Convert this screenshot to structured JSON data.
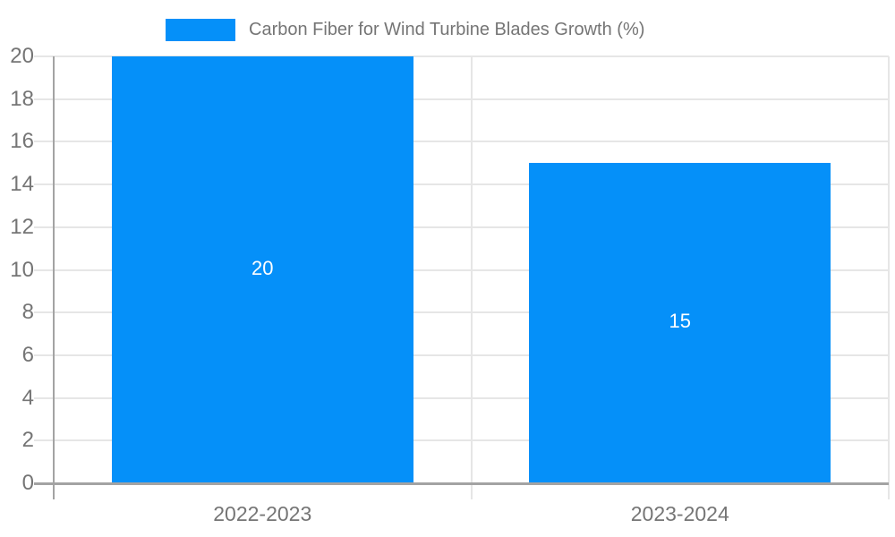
{
  "chart_data": {
    "type": "bar",
    "title": "Carbon Fiber for Wind Turbine Blades Growth (%)",
    "categories": [
      "2022-2023",
      "2023-2024"
    ],
    "values": [
      20,
      15
    ],
    "bar_value_labels": [
      "20",
      "15"
    ],
    "xlabel": "",
    "ylabel": "",
    "ylim": [
      0,
      20
    ],
    "yticks": [
      0,
      2,
      4,
      6,
      8,
      10,
      12,
      14,
      16,
      18,
      20
    ],
    "grid": true,
    "legend_position": "top-center",
    "colors": {
      "bar": "#0590f9",
      "bar_value_label": "#ffffff",
      "axis_label": "#757575",
      "legend_text": "#757575",
      "gridline": "#e6e6e6",
      "axis_line": "#a3a3a3",
      "background": "#ffffff"
    }
  }
}
